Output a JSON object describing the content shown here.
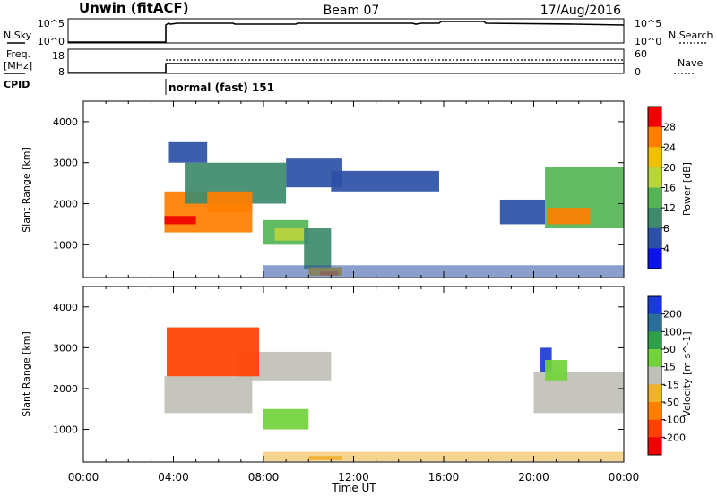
{
  "header": {
    "station": "Unwin (fitACF)",
    "beam": "Beam 07",
    "date": "17/Aug/2016"
  },
  "top_panels": {
    "nsky_label": "N.Sky",
    "nsearch_label": "N.Search",
    "noise_ticks": [
      "10^5",
      "10^0"
    ],
    "freq_label_1": "Freq.",
    "freq_label_2": "[MHz]",
    "freq_ticks": [
      "18",
      "8"
    ],
    "nave_label": "Nave",
    "nave_ticks": [
      "60",
      "0"
    ],
    "cpid_label": "CPID",
    "cpid_value": "normal (fast) 151"
  },
  "chart_data": [
    {
      "type": "heatmap",
      "panel": "power",
      "ylabel": "Slant Range [km]",
      "xlabel": "",
      "xlim": [
        0,
        24
      ],
      "ylim": [
        200,
        4500
      ],
      "yticks": [
        1000,
        2000,
        3000,
        4000
      ],
      "colorbar": {
        "label": "Power [dB]",
        "ticks": [
          4,
          8,
          12,
          16,
          20,
          24,
          28
        ],
        "colors": [
          "#0a14e6",
          "#2c50a6",
          "#3e8a6c",
          "#55b555",
          "#b8d43e",
          "#f0c000",
          "#ff7e00",
          "#f00000"
        ],
        "bounds": [
          0,
          4,
          8,
          12,
          16,
          20,
          24,
          28,
          30
        ]
      },
      "regions": [
        {
          "t0": 3.6,
          "t1": 7.5,
          "r0": 1300,
          "r1": 2300,
          "v": 24
        },
        {
          "t0": 3.6,
          "t1": 5.0,
          "r0": 1500,
          "r1": 1700,
          "v": 29
        },
        {
          "t0": 4.5,
          "t1": 9.0,
          "r0": 2000,
          "r1": 3000,
          "v": 9
        },
        {
          "t0": 5.5,
          "t1": 7.5,
          "r0": 1800,
          "r1": 2300,
          "v": 26
        },
        {
          "t0": 3.8,
          "t1": 5.5,
          "r0": 3000,
          "r1": 3500,
          "v": 5
        },
        {
          "t0": 9.0,
          "t1": 11.5,
          "r0": 2400,
          "r1": 3100,
          "v": 5
        },
        {
          "t0": 11.0,
          "t1": 15.8,
          "r0": 2300,
          "r1": 2800,
          "v": 4
        },
        {
          "t0": 8.0,
          "t1": 10.0,
          "r0": 1000,
          "r1": 1600,
          "v": 14
        },
        {
          "t0": 8.5,
          "t1": 9.8,
          "r0": 1100,
          "r1": 1400,
          "v": 19
        },
        {
          "t0": 9.8,
          "t1": 11.0,
          "r0": 400,
          "r1": 1400,
          "v": 9
        },
        {
          "t0": 10.0,
          "t1": 11.5,
          "r0": 250,
          "r1": 450,
          "v": 23
        },
        {
          "t0": 10.5,
          "t1": 11.3,
          "r0": 250,
          "r1": 350,
          "v": 27
        },
        {
          "t0": 8.0,
          "t1": 24.0,
          "r0": 220,
          "r1": 500,
          "v": 5
        },
        {
          "t0": 18.5,
          "t1": 20.5,
          "r0": 1500,
          "r1": 2100,
          "v": 5
        },
        {
          "t0": 20.5,
          "t1": 24.0,
          "r0": 1400,
          "r1": 2900,
          "v": 14
        },
        {
          "t0": 20.6,
          "t1": 22.5,
          "r0": 1500,
          "r1": 1900,
          "v": 26
        }
      ]
    },
    {
      "type": "heatmap",
      "panel": "velocity",
      "ylabel": "Slant Range [km]",
      "xlabel": "Time UT",
      "xticks": [
        "00:00",
        "04:00",
        "08:00",
        "12:00",
        "16:00",
        "20:00",
        "00:00"
      ],
      "xlim": [
        0,
        24
      ],
      "ylim": [
        200,
        4500
      ],
      "yticks": [
        1000,
        2000,
        3000,
        4000
      ],
      "colorbar": {
        "label": "Velocity [m s^-1]",
        "ticks": [
          200,
          100,
          50,
          15,
          -15,
          -50,
          -100,
          -200
        ],
        "colors": [
          "#1a3ad4",
          "#2a6e9a",
          "#2fa04a",
          "#72d23a",
          "#c0c0b8",
          "#f0b030",
          "#ff8000",
          "#ff4000",
          "#f00000"
        ],
        "bounds": [
          300,
          200,
          100,
          50,
          15,
          -15,
          -50,
          -100,
          -200,
          -300
        ]
      },
      "regions": [
        {
          "t0": 3.6,
          "t1": 7.5,
          "r0": 1400,
          "r1": 2300,
          "v": 0
        },
        {
          "t0": 6.8,
          "t1": 11.0,
          "r0": 2200,
          "r1": 2900,
          "v": 0
        },
        {
          "t0": 8.0,
          "t1": 10.0,
          "r0": 1000,
          "r1": 1500,
          "v": 30
        },
        {
          "t0": 3.7,
          "t1": 7.8,
          "r0": 2300,
          "r1": 3500,
          "v": -150
        },
        {
          "t0": 20.0,
          "t1": 24.0,
          "r0": 1400,
          "r1": 2400,
          "v": 0
        },
        {
          "t0": 20.3,
          "t1": 20.8,
          "r0": 2400,
          "r1": 3000,
          "v": 220
        },
        {
          "t0": 20.5,
          "t1": 21.5,
          "r0": 2200,
          "r1": 2700,
          "v": 30
        },
        {
          "t0": 8.0,
          "t1": 24.0,
          "r0": 220,
          "r1": 450,
          "v": -30
        },
        {
          "t0": 10.0,
          "t1": 11.5,
          "r0": 250,
          "r1": 350,
          "v": -40
        }
      ]
    }
  ]
}
